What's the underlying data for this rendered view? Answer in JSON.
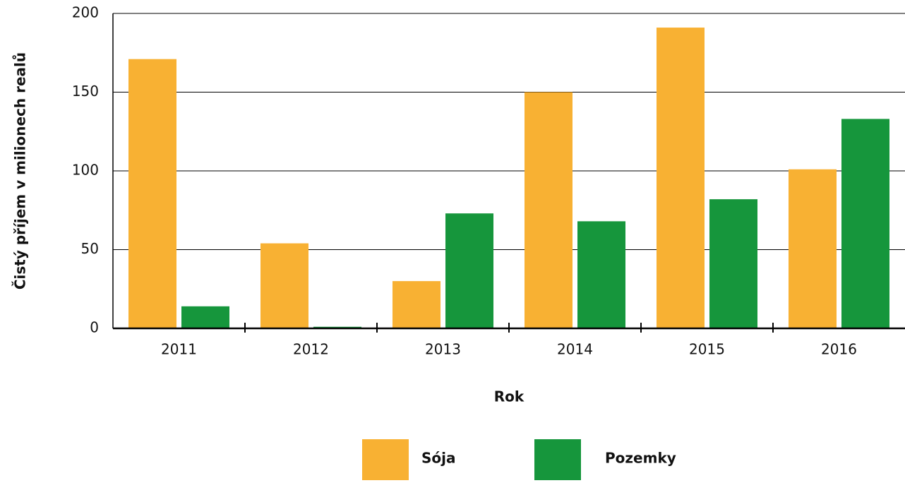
{
  "chart_data": {
    "type": "bar",
    "categories": [
      "2011",
      "2012",
      "2013",
      "2014",
      "2015",
      "2016"
    ],
    "series": [
      {
        "name": "Sója",
        "color": "#f8b133",
        "values": [
          171,
          54,
          30,
          150,
          191,
          101
        ]
      },
      {
        "name": "Pozemky",
        "color": "#16963c",
        "values": [
          14,
          1,
          73,
          68,
          82,
          133
        ]
      }
    ],
    "x_label": "Rok",
    "y_label": "Čistý příjem v milionech realů",
    "ylim": [
      0,
      200
    ],
    "yticks": [
      0,
      50,
      100,
      150,
      200
    ],
    "grid": true,
    "legend": "bottom"
  }
}
